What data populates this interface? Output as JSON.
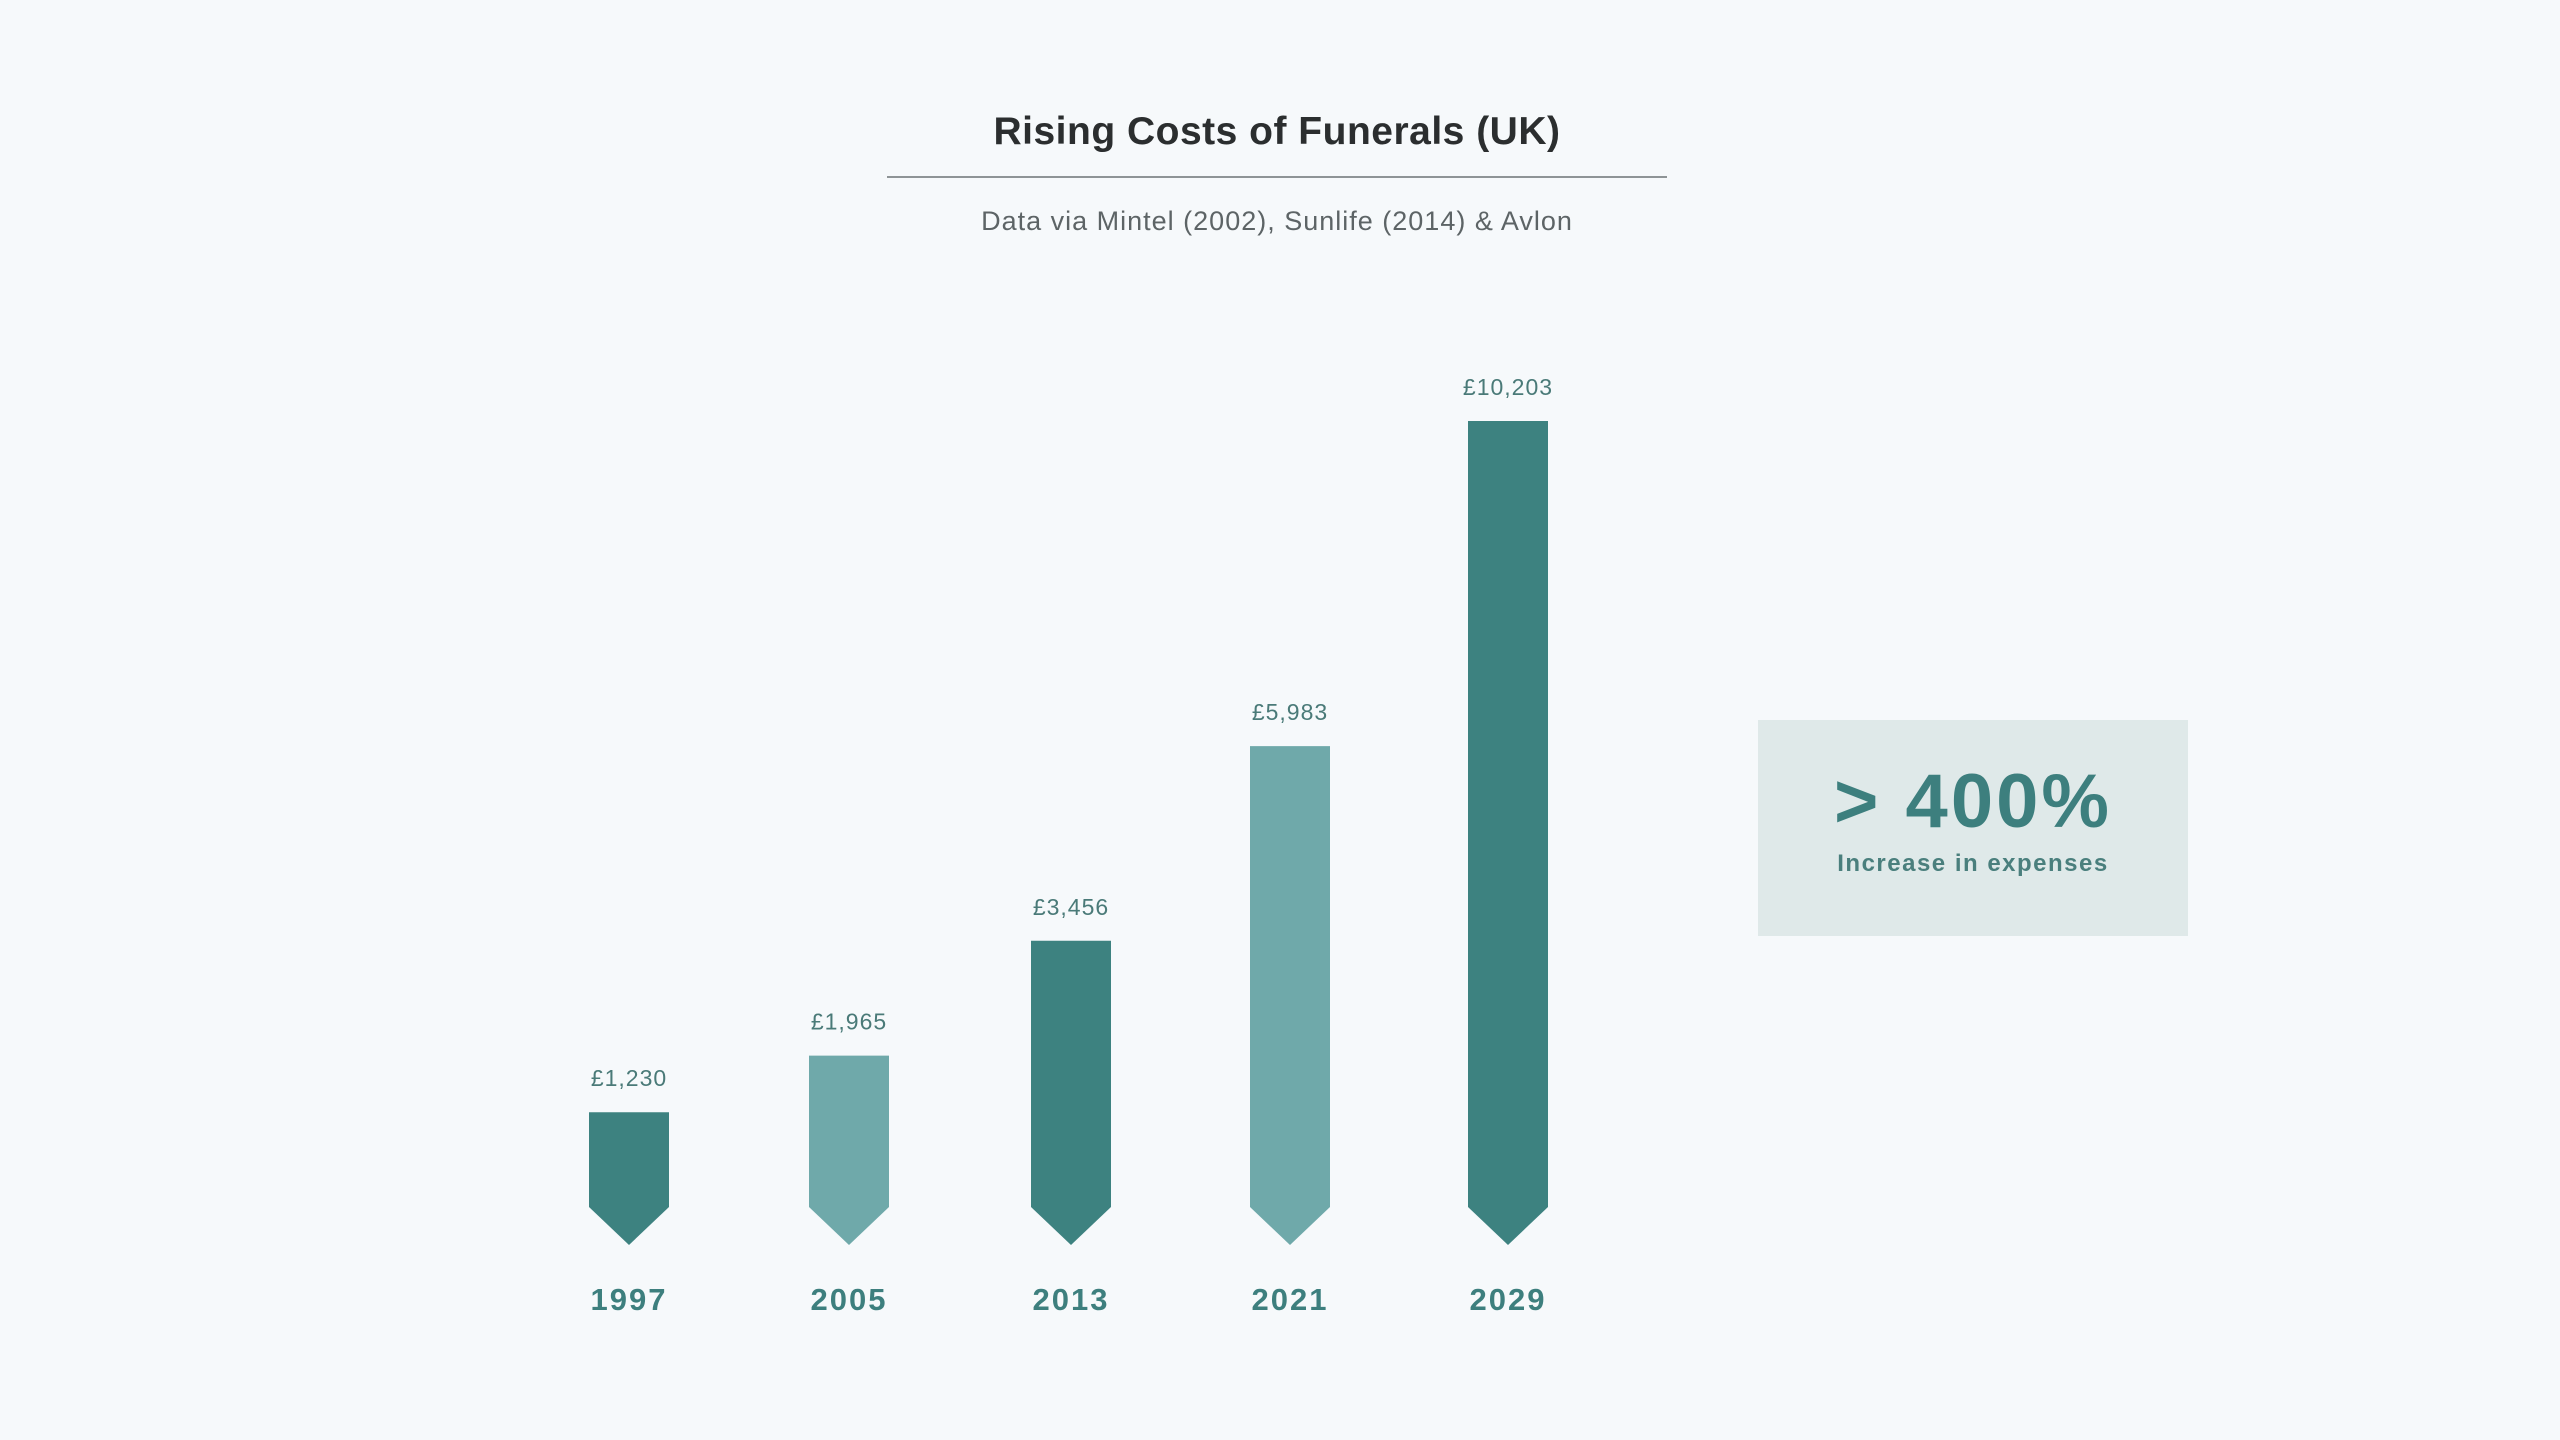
{
  "chart_data": {
    "type": "bar",
    "title": "Rising Costs of Funerals (UK)",
    "subtitle": "Data via Mintel (2002), Sunlife (2014) & Avlon",
    "categories": [
      "1997",
      "2005",
      "2013",
      "2021",
      "2029"
    ],
    "values": [
      1230,
      1965,
      3456,
      5983,
      10203
    ],
    "value_labels": [
      "£1,230",
      "£1,965",
      "£3,456",
      "£5,983",
      "£10,203"
    ],
    "ylim": [
      0,
      10203
    ],
    "xlabel": "",
    "ylabel": "",
    "grid": false,
    "colors": [
      "#3d8280",
      "#6fa9aa",
      "#3d8280",
      "#6fa9aa",
      "#3d8280"
    ]
  },
  "callout": {
    "value": "> 400%",
    "caption": "Increase in expenses"
  }
}
